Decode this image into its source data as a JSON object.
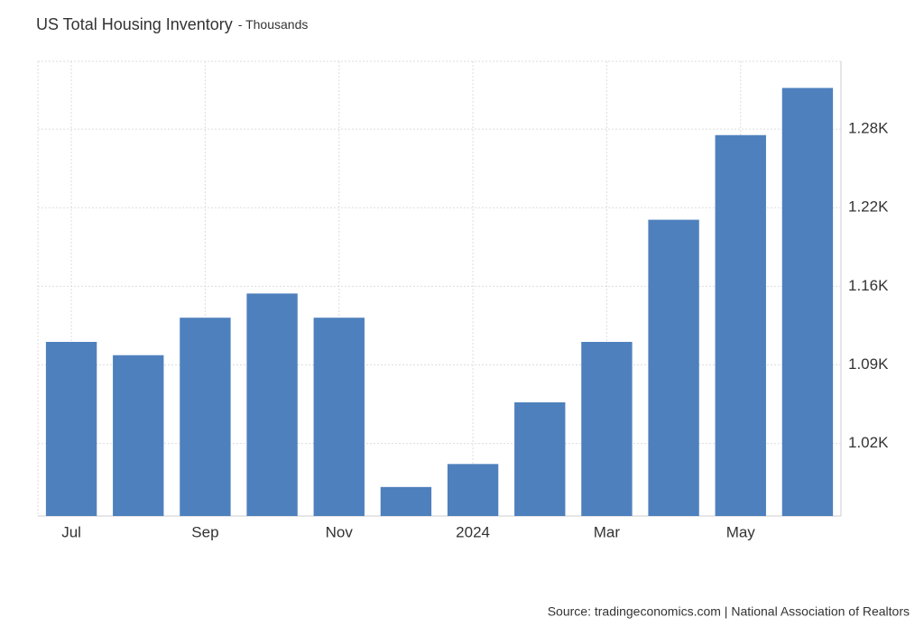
{
  "chart_data": {
    "type": "bar",
    "title": "US Total Housing Inventory",
    "subtitle": "- Thousands",
    "categories": [
      "Jul",
      null,
      "Sep",
      null,
      "Nov",
      null,
      "2024",
      null,
      "Mar",
      null,
      "May",
      null
    ],
    "values": [
      1109,
      1098,
      1129,
      1149,
      1129,
      989,
      1008,
      1059,
      1109,
      1210,
      1280,
      1319
    ],
    "color": "#4e80bd",
    "ylim": [
      965,
      1341
    ],
    "yticks": [
      {
        "value": 1025,
        "label": "1.02K"
      },
      {
        "value": 1090,
        "label": "1.09K"
      },
      {
        "value": 1155,
        "label": "1.16K"
      },
      {
        "value": 1220,
        "label": "1.22K"
      },
      {
        "value": 1285,
        "label": "1.28K"
      }
    ],
    "grid": true,
    "source": "Source: tradingeconomics.com | National Association of Realtors"
  }
}
